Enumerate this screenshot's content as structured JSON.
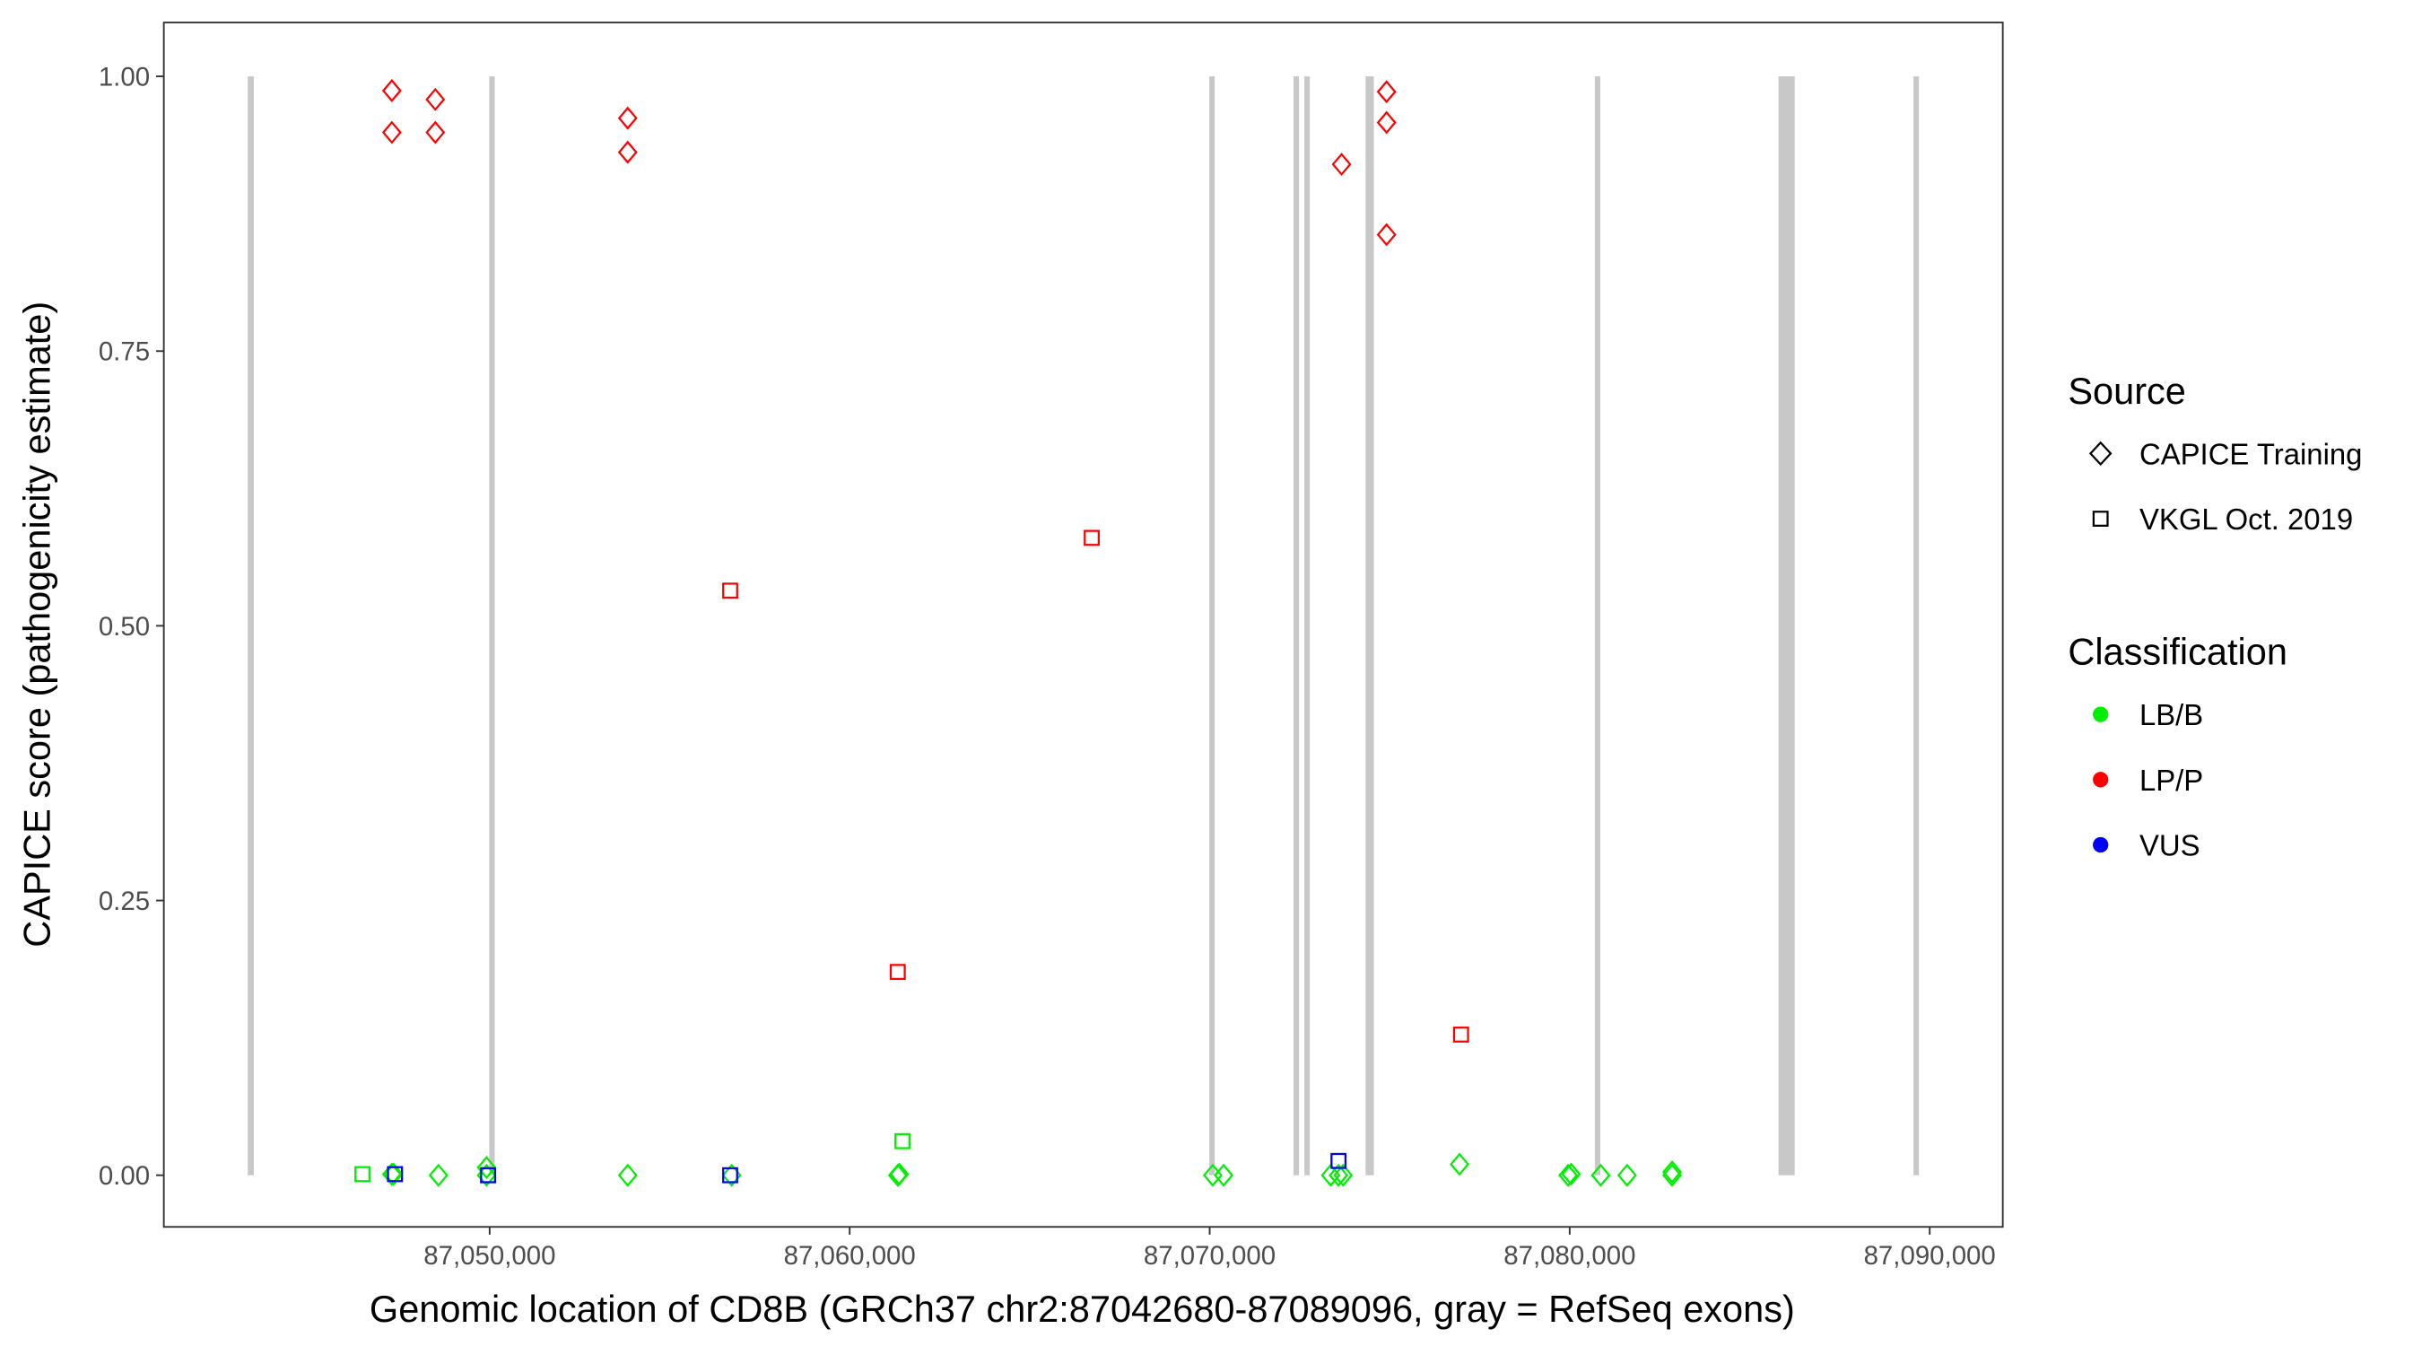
{
  "chart_data": {
    "type": "scatter",
    "xlabel": "Genomic location of CD8B (GRCh37 chr2:87042680-87089096, gray = RefSeq exons)",
    "ylabel": "CAPICE score (pathogenicity estimate)",
    "xlim": [
      87040950,
      87092030
    ],
    "ylim": [
      -0.047,
      1.049
    ],
    "x_ticks": [
      87050000,
      87060000,
      87070000,
      87080000,
      87090000
    ],
    "x_tick_labels": [
      "87,050,000",
      "87,060,000",
      "87,070,000",
      "87,080,000",
      "87,090,000"
    ],
    "y_ticks": [
      0,
      0.25,
      0.5,
      0.75,
      1.0
    ],
    "y_tick_labels": [
      "0.00",
      "0.25",
      "0.50",
      "0.75",
      "1.00"
    ],
    "grid": false,
    "legend_placement": "right",
    "exons": [
      [
        87043280,
        87043450
      ],
      [
        87049990,
        87050090
      ],
      [
        87069990,
        87070100
      ],
      [
        87072330,
        87072420
      ],
      [
        87072630,
        87072720
      ],
      [
        87074330,
        87074560
      ],
      [
        87080700,
        87080850
      ],
      [
        87085800,
        87086250
      ],
      [
        87089550,
        87089680
      ]
    ],
    "exon_color": "#c8c8c8",
    "legends": {
      "source": {
        "title": "Source",
        "items": [
          {
            "label": "CAPICE Training",
            "shape": "diamond"
          },
          {
            "label": "VKGL Oct. 2019",
            "shape": "square"
          }
        ]
      },
      "classification": {
        "title": "Classification",
        "items": [
          {
            "label": "LB/B",
            "color": "#00ee00"
          },
          {
            "label": "LP/P",
            "color": "#ff0000"
          },
          {
            "label": "VUS",
            "color": "#0000ff"
          }
        ]
      }
    },
    "points": [
      {
        "x": 87046466,
        "y": 0.001,
        "source": "VKGL Oct. 2019",
        "class": "LB/B"
      },
      {
        "x": 87047284,
        "y": 0.001,
        "source": "CAPICE Training",
        "class": "LB/B"
      },
      {
        "x": 87047330,
        "y": 0.001,
        "source": "CAPICE Training",
        "class": "LB/B"
      },
      {
        "x": 87048578,
        "y": 0.0,
        "source": "CAPICE Training",
        "class": "LB/B"
      },
      {
        "x": 87049914,
        "y": 0.0,
        "source": "CAPICE Training",
        "class": "LB/B"
      },
      {
        "x": 87049914,
        "y": 0.007,
        "source": "CAPICE Training",
        "class": "LB/B"
      },
      {
        "x": 87049957,
        "y": 0.0,
        "source": "VKGL Oct. 2019",
        "class": "LB/B"
      },
      {
        "x": 87053836,
        "y": 0.0,
        "source": "CAPICE Training",
        "class": "LB/B"
      },
      {
        "x": 87056724,
        "y": 0.0,
        "source": "CAPICE Training",
        "class": "LB/B"
      },
      {
        "x": 87061336,
        "y": 0.0,
        "source": "CAPICE Training",
        "class": "LB/B"
      },
      {
        "x": 87061380,
        "y": 0.001,
        "source": "CAPICE Training",
        "class": "LB/B"
      },
      {
        "x": 87061466,
        "y": 0.031,
        "source": "VKGL Oct. 2019",
        "class": "LB/B"
      },
      {
        "x": 87070086,
        "y": 0.0,
        "source": "CAPICE Training",
        "class": "LB/B"
      },
      {
        "x": 87070388,
        "y": 0.0,
        "source": "CAPICE Training",
        "class": "LB/B"
      },
      {
        "x": 87073362,
        "y": 0.0,
        "source": "CAPICE Training",
        "class": "LB/B"
      },
      {
        "x": 87073578,
        "y": 0.0,
        "source": "CAPICE Training",
        "class": "LB/B"
      },
      {
        "x": 87073707,
        "y": 0.0,
        "source": "CAPICE Training",
        "class": "LB/B"
      },
      {
        "x": 87076940,
        "y": 0.01,
        "source": "CAPICE Training",
        "class": "LB/B"
      },
      {
        "x": 87079957,
        "y": 0.0,
        "source": "CAPICE Training",
        "class": "LB/B"
      },
      {
        "x": 87080040,
        "y": 0.001,
        "source": "CAPICE Training",
        "class": "LB/B"
      },
      {
        "x": 87080862,
        "y": 0.0,
        "source": "CAPICE Training",
        "class": "LB/B"
      },
      {
        "x": 87081595,
        "y": 0.0,
        "source": "CAPICE Training",
        "class": "LB/B"
      },
      {
        "x": 87082845,
        "y": 0.0,
        "source": "CAPICE Training",
        "class": "LB/B"
      },
      {
        "x": 87082845,
        "y": 0.003,
        "source": "CAPICE Training",
        "class": "LB/B"
      },
      {
        "x": 87047284,
        "y": 0.987,
        "source": "CAPICE Training",
        "class": "LP/P"
      },
      {
        "x": 87047284,
        "y": 0.949,
        "source": "CAPICE Training",
        "class": "LP/P"
      },
      {
        "x": 87048491,
        "y": 0.979,
        "source": "CAPICE Training",
        "class": "LP/P"
      },
      {
        "x": 87048491,
        "y": 0.949,
        "source": "CAPICE Training",
        "class": "LP/P"
      },
      {
        "x": 87053836,
        "y": 0.962,
        "source": "CAPICE Training",
        "class": "LP/P"
      },
      {
        "x": 87053836,
        "y": 0.931,
        "source": "CAPICE Training",
        "class": "LP/P"
      },
      {
        "x": 87073664,
        "y": 0.92,
        "source": "CAPICE Training",
        "class": "LP/P"
      },
      {
        "x": 87074914,
        "y": 0.986,
        "source": "CAPICE Training",
        "class": "LP/P"
      },
      {
        "x": 87074914,
        "y": 0.958,
        "source": "CAPICE Training",
        "class": "LP/P"
      },
      {
        "x": 87074914,
        "y": 0.856,
        "source": "CAPICE Training",
        "class": "LP/P"
      },
      {
        "x": 87056681,
        "y": 0.532,
        "source": "VKGL Oct. 2019",
        "class": "LP/P"
      },
      {
        "x": 87066724,
        "y": 0.58,
        "source": "VKGL Oct. 2019",
        "class": "LP/P"
      },
      {
        "x": 87061336,
        "y": 0.185,
        "source": "VKGL Oct. 2019",
        "class": "LP/P"
      },
      {
        "x": 87076983,
        "y": 0.128,
        "source": "VKGL Oct. 2019",
        "class": "LP/P"
      },
      {
        "x": 87047371,
        "y": 0.001,
        "source": "VKGL Oct. 2019",
        "class": "VUS"
      },
      {
        "x": 87049957,
        "y": 0.0,
        "source": "VKGL Oct. 2019",
        "class": "VUS"
      },
      {
        "x": 87056681,
        "y": 0.0,
        "source": "VKGL Oct. 2019",
        "class": "VUS"
      },
      {
        "x": 87073578,
        "y": 0.013,
        "source": "VKGL Oct. 2019",
        "class": "VUS"
      }
    ]
  }
}
